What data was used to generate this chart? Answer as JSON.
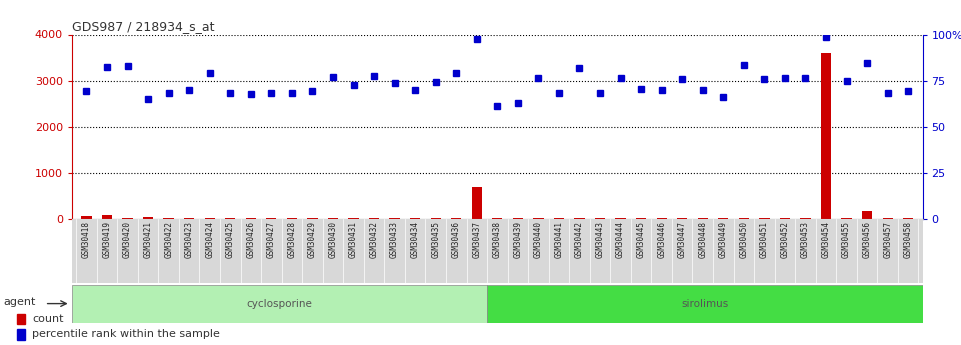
{
  "title": "GDS987 / 218934_s_at",
  "samples": [
    "GSM30418",
    "GSM30419",
    "GSM30420",
    "GSM30421",
    "GSM30422",
    "GSM30423",
    "GSM30424",
    "GSM30425",
    "GSM30426",
    "GSM30427",
    "GSM30428",
    "GSM30429",
    "GSM30430",
    "GSM30431",
    "GSM30432",
    "GSM30433",
    "GSM30434",
    "GSM30435",
    "GSM30436",
    "GSM30437",
    "GSM30438",
    "GSM30439",
    "GSM30440",
    "GSM30441",
    "GSM30442",
    "GSM30443",
    "GSM30444",
    "GSM30445",
    "GSM30446",
    "GSM30447",
    "GSM30448",
    "GSM30449",
    "GSM30450",
    "GSM30451",
    "GSM30452",
    "GSM30453",
    "GSM30454",
    "GSM30455",
    "GSM30456",
    "GSM30457",
    "GSM30458"
  ],
  "count_values": [
    60,
    80,
    30,
    40,
    30,
    30,
    30,
    30,
    30,
    30,
    30,
    30,
    30,
    30,
    30,
    30,
    30,
    30,
    30,
    700,
    30,
    30,
    30,
    30,
    30,
    30,
    30,
    30,
    30,
    30,
    30,
    30,
    30,
    30,
    30,
    30,
    3600,
    30,
    180,
    30,
    30
  ],
  "percentile_values": [
    2780,
    3300,
    3310,
    2600,
    2730,
    2800,
    3170,
    2740,
    2700,
    2730,
    2740,
    2780,
    3080,
    2900,
    3090,
    2950,
    2790,
    2980,
    3160,
    3900,
    2460,
    2520,
    3050,
    2730,
    3280,
    2740,
    3050,
    2820,
    2790,
    3040,
    2790,
    2640,
    3340,
    3040,
    3050,
    3060,
    3950,
    3000,
    3380,
    2740,
    2780
  ],
  "cyclosporine_count": 20,
  "sirolimus_count": 21,
  "ylim_left": [
    0,
    4000
  ],
  "yticks_left": [
    0,
    1000,
    2000,
    3000,
    4000
  ],
  "yticks_right_labels": [
    "0",
    "25",
    "50",
    "75",
    "100%"
  ],
  "yticks_right_vals": [
    0,
    1000,
    2000,
    3000,
    4000
  ],
  "grid_values": [
    1000,
    2000,
    3000,
    4000
  ],
  "count_color": "#cc0000",
  "percentile_color": "#0000cc",
  "cyclosporine_color": "#b3f0b3",
  "sirolimus_color": "#44dd44",
  "bg_color": "#ffffff",
  "title_color": "#333333",
  "left_axis_color": "#cc0000",
  "right_axis_color": "#0000cc",
  "xtick_bg_color": "#d8d8d8"
}
